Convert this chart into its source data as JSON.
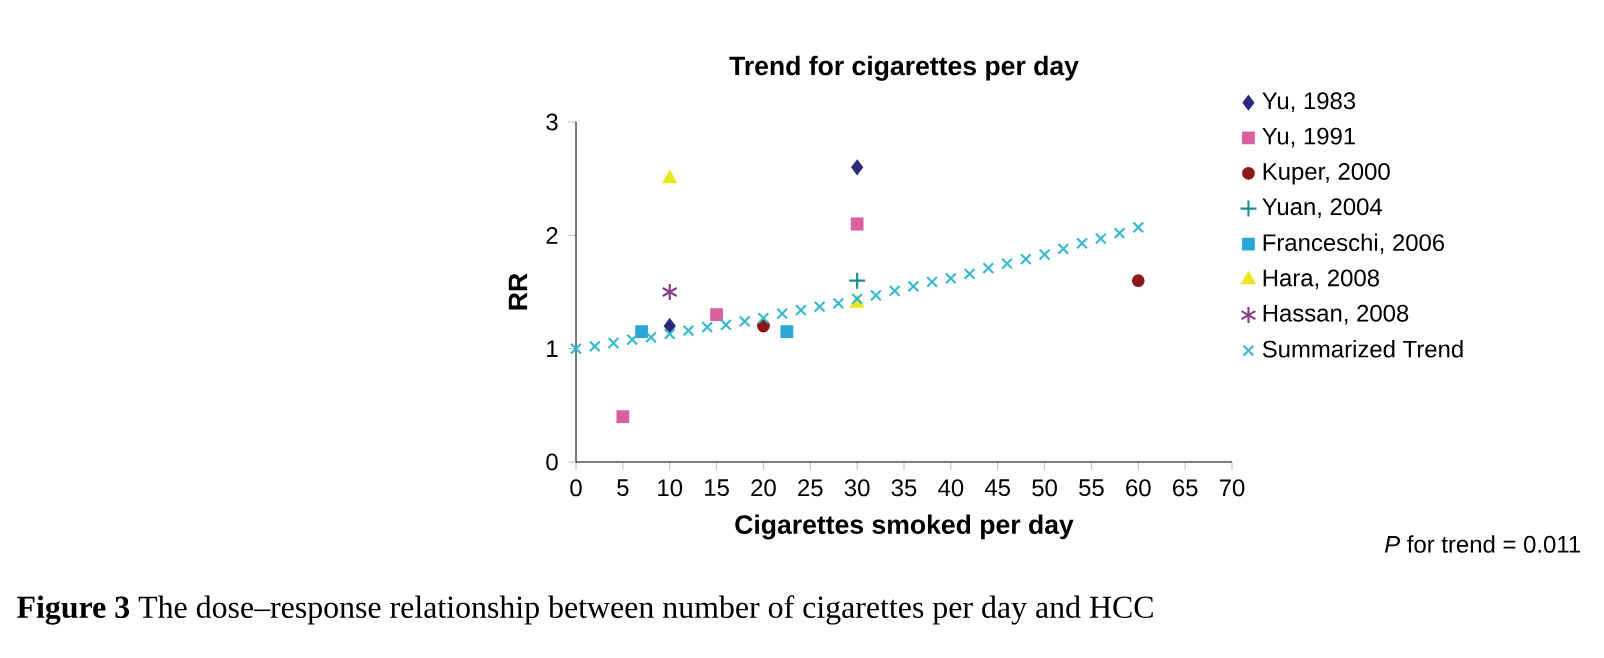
{
  "chart_data": {
    "type": "scatter",
    "title": "Trend for cigarettes per day",
    "xlabel": "Cigarettes smoked per day",
    "ylabel": "RR",
    "xlim": [
      0,
      70
    ],
    "ylim": [
      0,
      3
    ],
    "xticks": [
      0,
      5,
      10,
      15,
      20,
      25,
      30,
      35,
      40,
      45,
      50,
      55,
      60,
      65,
      70
    ],
    "yticks": [
      0,
      1,
      2,
      3
    ],
    "legend": "right",
    "series": [
      {
        "name": "Yu, 1983",
        "color": "#2e2a7a",
        "marker": "diamond",
        "x": [
          10,
          30
        ],
        "values": [
          1.2,
          2.6
        ]
      },
      {
        "name": "Yu, 1991",
        "color": "#d9609e",
        "marker": "square",
        "x": [
          5,
          15,
          30
        ],
        "values": [
          0.4,
          1.3,
          2.1
        ]
      },
      {
        "name": "Kuper, 2000",
        "color": "#8b1a1a",
        "marker": "circle",
        "x": [
          20,
          60
        ],
        "values": [
          1.2,
          1.6
        ]
      },
      {
        "name": "Yuan, 2004",
        "color": "#1f8a8a",
        "marker": "plus",
        "x": [
          30
        ],
        "values": [
          1.6
        ]
      },
      {
        "name": "Franceschi, 2006",
        "color": "#2aa6d8",
        "marker": "square",
        "x": [
          7,
          22.5
        ],
        "values": [
          1.15,
          1.15
        ]
      },
      {
        "name": "Hara, 2008",
        "color": "#e8e820",
        "marker": "triangle",
        "x": [
          10,
          30
        ],
        "values": [
          2.5,
          1.4
        ]
      },
      {
        "name": "Hassan, 2008",
        "color": "#8a3a8a",
        "x": [
          10
        ],
        "values": [
          1.5
        ]
      },
      {
        "name": "Summarized Trend",
        "color": "#38b8d0",
        "marker": "cross",
        "x": [
          0,
          2,
          4,
          6,
          8,
          10,
          12,
          14,
          16,
          18,
          20,
          22,
          24,
          26,
          28,
          30,
          32,
          34,
          36,
          38,
          40,
          42,
          44,
          46,
          48,
          50,
          52,
          54,
          56,
          58,
          60
        ],
        "values": [
          1.0,
          1.02,
          1.05,
          1.08,
          1.1,
          1.13,
          1.16,
          1.19,
          1.21,
          1.24,
          1.27,
          1.31,
          1.34,
          1.37,
          1.4,
          1.44,
          1.47,
          1.51,
          1.55,
          1.59,
          1.62,
          1.66,
          1.71,
          1.75,
          1.79,
          1.83,
          1.88,
          1.93,
          1.97,
          2.02,
          2.07
        ]
      }
    ],
    "annotations": [
      "*P* for trend = 0.011",
      "**Figure 3** The dose–response relationship between number of cigarettes per day and HCC"
    ]
  }
}
